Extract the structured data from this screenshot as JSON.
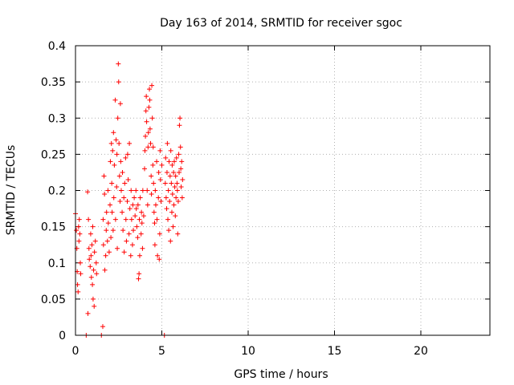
{
  "chart_data": {
    "type": "scatter",
    "title": "Day 163 of 2014, SRMTID for receiver sgoc",
    "xlabel": "GPS time / hours",
    "ylabel": "SRMTID / TECUs",
    "xlim": [
      0,
      24
    ],
    "ylim": [
      0,
      0.4
    ],
    "x_ticks": [
      0,
      5,
      10,
      15,
      20
    ],
    "x_tick_labels": [
      "0",
      "5",
      "10",
      "15",
      "20"
    ],
    "y_ticks": [
      0,
      0.05,
      0.1,
      0.15,
      0.2,
      0.25,
      0.3,
      0.35,
      0.4
    ],
    "y_tick_labels": [
      "0",
      "0.05",
      "0.1",
      "0.15",
      "0.2",
      "0.25",
      "0.3",
      "0.35",
      "0.4"
    ],
    "grid": true,
    "marker": "plus",
    "series": [
      {
        "name": "sgoc",
        "color": "#ff0000",
        "points": [
          [
            0.0,
            0.168
          ],
          [
            0.05,
            0.145
          ],
          [
            0.08,
            0.12
          ],
          [
            0.1,
            0.088
          ],
          [
            0.12,
            0.07
          ],
          [
            0.15,
            0.06
          ],
          [
            0.18,
            0.15
          ],
          [
            0.2,
            0.13
          ],
          [
            0.22,
            0.16
          ],
          [
            0.25,
            0.14
          ],
          [
            0.28,
            0.1
          ],
          [
            0.3,
            0.085
          ],
          [
            0.62,
            0.0
          ],
          [
            0.7,
            0.198
          ],
          [
            0.72,
            0.03
          ],
          [
            0.75,
            0.16
          ],
          [
            0.78,
            0.12
          ],
          [
            0.8,
            0.105
          ],
          [
            0.85,
            0.095
          ],
          [
            0.88,
            0.14
          ],
          [
            0.9,
            0.11
          ],
          [
            0.92,
            0.08
          ],
          [
            0.95,
            0.125
          ],
          [
            0.98,
            0.07
          ],
          [
            1.0,
            0.15
          ],
          [
            1.02,
            0.05
          ],
          [
            1.05,
            0.09
          ],
          [
            1.08,
            0.04
          ],
          [
            1.1,
            0.115
          ],
          [
            1.15,
            0.13
          ],
          [
            1.2,
            0.1
          ],
          [
            1.22,
            0.085
          ],
          [
            1.5,
            0.0
          ],
          [
            1.58,
            0.012
          ],
          [
            1.6,
            0.16
          ],
          [
            1.62,
            0.125
          ],
          [
            1.65,
            0.22
          ],
          [
            1.68,
            0.195
          ],
          [
            1.7,
            0.09
          ],
          [
            1.75,
            0.11
          ],
          [
            1.78,
            0.145
          ],
          [
            1.8,
            0.17
          ],
          [
            1.85,
            0.13
          ],
          [
            1.88,
            0.2
          ],
          [
            1.9,
            0.155
          ],
          [
            1.95,
            0.115
          ],
          [
            2.0,
            0.18
          ],
          [
            2.02,
            0.24
          ],
          [
            2.05,
            0.135
          ],
          [
            2.08,
            0.265
          ],
          [
            2.1,
            0.21
          ],
          [
            2.12,
            0.17
          ],
          [
            2.15,
            0.255
          ],
          [
            2.18,
            0.145
          ],
          [
            2.2,
            0.28
          ],
          [
            2.22,
            0.19
          ],
          [
            2.25,
            0.235
          ],
          [
            2.3,
            0.325
          ],
          [
            2.32,
            0.16
          ],
          [
            2.35,
            0.27
          ],
          [
            2.38,
            0.205
          ],
          [
            2.4,
            0.25
          ],
          [
            2.42,
            0.12
          ],
          [
            2.45,
            0.3
          ],
          [
            2.48,
            0.375
          ],
          [
            2.5,
            0.35
          ],
          [
            2.52,
            0.265
          ],
          [
            2.55,
            0.22
          ],
          [
            2.58,
            0.185
          ],
          [
            2.6,
            0.32
          ],
          [
            2.62,
            0.24
          ],
          [
            2.65,
            0.2
          ],
          [
            2.7,
            0.17
          ],
          [
            2.72,
            0.225
          ],
          [
            2.75,
            0.145
          ],
          [
            2.8,
            0.19
          ],
          [
            2.82,
            0.115
          ],
          [
            2.85,
            0.21
          ],
          [
            2.9,
            0.245
          ],
          [
            2.92,
            0.16
          ],
          [
            2.95,
            0.13
          ],
          [
            3.0,
            0.185
          ],
          [
            3.02,
            0.25
          ],
          [
            3.05,
            0.215
          ],
          [
            3.1,
            0.14
          ],
          [
            3.12,
            0.265
          ],
          [
            3.15,
            0.175
          ],
          [
            3.2,
            0.11
          ],
          [
            3.22,
            0.2
          ],
          [
            3.25,
            0.16
          ],
          [
            3.3,
            0.125
          ],
          [
            3.32,
            0.18
          ],
          [
            3.35,
            0.145
          ],
          [
            3.4,
            0.19
          ],
          [
            3.45,
            0.165
          ],
          [
            3.5,
            0.2
          ],
          [
            3.52,
            0.175
          ],
          [
            3.55,
            0.15
          ],
          [
            3.6,
            0.135
          ],
          [
            3.62,
            0.18
          ],
          [
            3.65,
            0.078
          ],
          [
            3.68,
            0.085
          ],
          [
            3.7,
            0.16
          ],
          [
            3.72,
            0.11
          ],
          [
            3.75,
            0.19
          ],
          [
            3.8,
            0.14
          ],
          [
            3.82,
            0.17
          ],
          [
            3.85,
            0.155
          ],
          [
            3.88,
            0.12
          ],
          [
            3.9,
            0.2
          ],
          [
            3.95,
            0.165
          ],
          [
            4.0,
            0.23
          ],
          [
            4.02,
            0.255
          ],
          [
            4.05,
            0.275
          ],
          [
            4.08,
            0.31
          ],
          [
            4.1,
            0.33
          ],
          [
            4.12,
            0.295
          ],
          [
            4.15,
            0.2
          ],
          [
            4.18,
            0.18
          ],
          [
            4.2,
            0.26
          ],
          [
            4.22,
            0.28
          ],
          [
            4.25,
            0.315
          ],
          [
            4.28,
            0.34
          ],
          [
            4.3,
            0.325
          ],
          [
            4.32,
            0.285
          ],
          [
            4.35,
            0.265
          ],
          [
            4.38,
            0.22
          ],
          [
            4.4,
            0.195
          ],
          [
            4.42,
            0.345
          ],
          [
            4.45,
            0.3
          ],
          [
            4.48,
            0.235
          ],
          [
            4.5,
            0.26
          ],
          [
            4.52,
            0.21
          ],
          [
            4.55,
            0.17
          ],
          [
            4.58,
            0.155
          ],
          [
            4.6,
            0.125
          ],
          [
            4.62,
            0.2
          ],
          [
            4.65,
            0.18
          ],
          [
            4.7,
            0.24
          ],
          [
            4.72,
            0.16
          ],
          [
            4.75,
            0.11
          ],
          [
            4.8,
            0.19
          ],
          [
            4.82,
            0.225
          ],
          [
            4.85,
            0.105
          ],
          [
            4.88,
            0.14
          ],
          [
            4.9,
            0.255
          ],
          [
            4.92,
            0.215
          ],
          [
            4.95,
            0.185
          ],
          [
            5.0,
            0.235
          ],
          [
            5.15,
            0.0
          ],
          [
            5.2,
            0.21
          ],
          [
            5.22,
            0.245
          ],
          [
            5.25,
            0.19
          ],
          [
            5.28,
            0.175
          ],
          [
            5.3,
            0.225
          ],
          [
            5.32,
            0.265
          ],
          [
            5.35,
            0.16
          ],
          [
            5.38,
            0.2
          ],
          [
            5.4,
            0.145
          ],
          [
            5.42,
            0.24
          ],
          [
            5.45,
            0.185
          ],
          [
            5.48,
            0.22
          ],
          [
            5.5,
            0.13
          ],
          [
            5.52,
            0.255
          ],
          [
            5.55,
            0.21
          ],
          [
            5.58,
            0.17
          ],
          [
            5.6,
            0.235
          ],
          [
            5.62,
            0.195
          ],
          [
            5.65,
            0.15
          ],
          [
            5.68,
            0.225
          ],
          [
            5.7,
            0.18
          ],
          [
            5.72,
            0.24
          ],
          [
            5.75,
            0.205
          ],
          [
            5.78,
            0.165
          ],
          [
            5.8,
            0.22
          ],
          [
            5.82,
            0.19
          ],
          [
            5.85,
            0.245
          ],
          [
            5.88,
            0.21
          ],
          [
            5.9,
            0.2
          ],
          [
            5.92,
            0.14
          ],
          [
            5.95,
            0.185
          ],
          [
            5.98,
            0.25
          ],
          [
            6.0,
            0.225
          ],
          [
            6.02,
            0.29
          ],
          [
            6.05,
            0.3
          ],
          [
            6.08,
            0.26
          ],
          [
            6.1,
            0.23
          ],
          [
            6.12,
            0.205
          ],
          [
            6.15,
            0.24
          ],
          [
            6.18,
            0.19
          ],
          [
            6.2,
            0.215
          ]
        ]
      }
    ]
  }
}
